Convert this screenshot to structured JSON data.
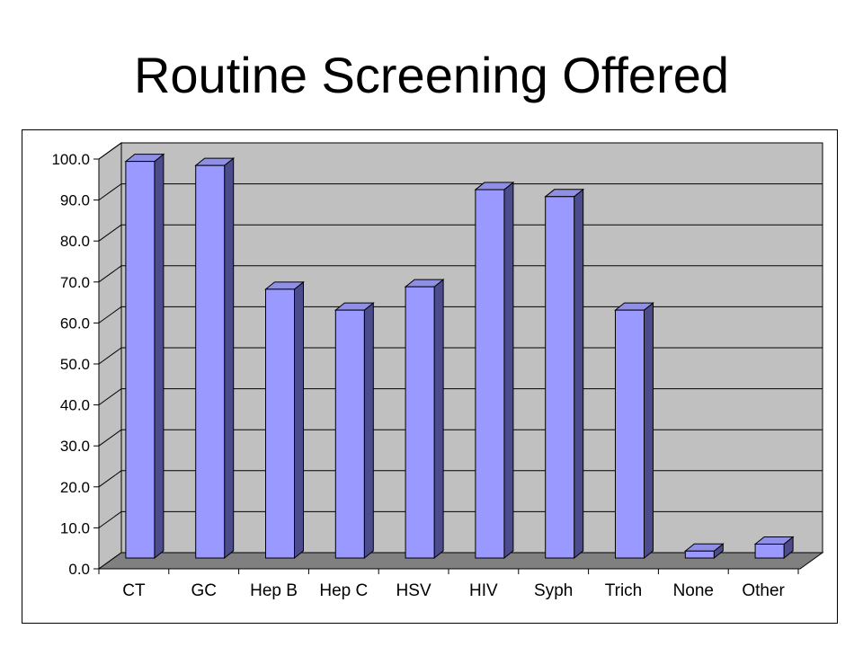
{
  "slide": {
    "title": "Routine Screening Offered"
  },
  "colors": {
    "bar_front": "#9999ff",
    "bar_side": "#4c4c8c",
    "bar_top": "#8f8fe6",
    "wall": "#c0c0c0",
    "floor": "#808080",
    "gridline": "#000000"
  },
  "chart_data": {
    "type": "bar",
    "title": "",
    "xlabel": "",
    "ylabel": "",
    "categories": [
      "CT",
      "GC",
      "Hep B",
      "Hep C",
      "HSV",
      "HIV",
      "Syph",
      "Trich",
      "None",
      "Other"
    ],
    "values": [
      96.8,
      95.8,
      65.6,
      60.5,
      66.2,
      89.9,
      88.2,
      60.5,
      1.7,
      3.4
    ],
    "ylim": [
      0,
      100
    ],
    "yticks": [
      "0.0",
      "10.0",
      "20.0",
      "30.0",
      "40.0",
      "50.0",
      "60.0",
      "70.0",
      "80.0",
      "90.0",
      "100.0"
    ],
    "grid": true,
    "legend": "none",
    "style": "3d-column"
  }
}
